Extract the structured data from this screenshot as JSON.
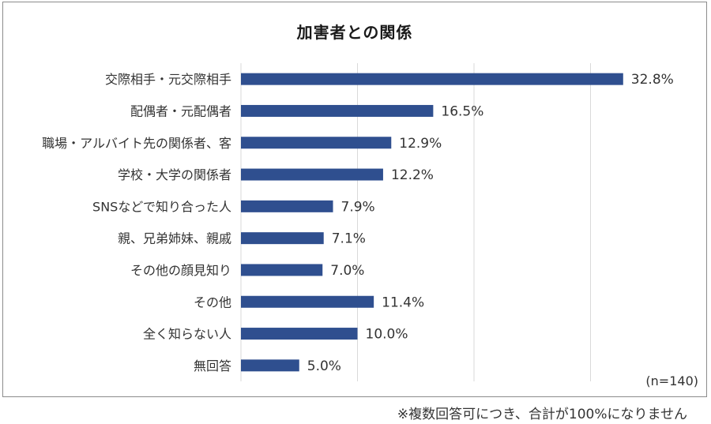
{
  "chart_data": {
    "type": "bar",
    "orientation": "horizontal",
    "title": "加害者との関係",
    "categories": [
      "交際相手・元交際相手",
      "配偶者・元配偶者",
      "職場・アルバイト先の関係者、客",
      "学校・大学の関係者",
      "SNSなどで知り合った人",
      "親、兄弟姉妹、親戚",
      "その他の顔見知り",
      "その他",
      "全く知らない人",
      "無回答"
    ],
    "values": [
      32.8,
      16.5,
      12.9,
      12.2,
      7.9,
      7.1,
      7.0,
      11.4,
      10.0,
      5.0
    ],
    "value_labels": [
      "32.8%",
      "16.5%",
      "12.9%",
      "12.2%",
      "7.9%",
      "7.1%",
      "7.0%",
      "11.4%",
      "10.0%",
      "5.0%"
    ],
    "xlim": [
      0,
      40
    ],
    "gridlines": [
      10,
      20,
      30
    ],
    "sample_note": "(n=140)",
    "bar_color": "#2f4f8f",
    "gridline_color": "#d9d9d9"
  },
  "footnote": "※複数回答可につき、合計が100%になりません"
}
